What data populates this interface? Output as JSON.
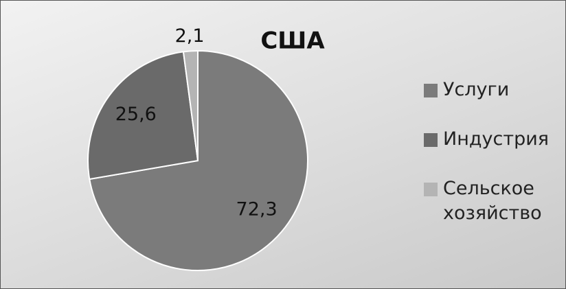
{
  "chart_data": {
    "type": "pie",
    "title": "США",
    "categories": [
      "Услуги",
      "Индустрия",
      "Сельское хозяйство"
    ],
    "values": [
      72.3,
      25.6,
      2.1
    ],
    "value_labels": [
      "72,3",
      "25,6",
      "2,1"
    ],
    "colors": [
      "#7b7b7b",
      "#6a6a6a",
      "#b4b4b4"
    ],
    "legend": "right"
  }
}
